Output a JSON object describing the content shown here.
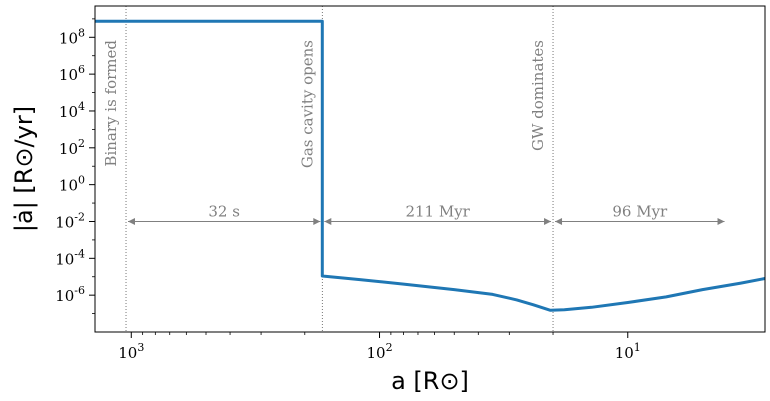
{
  "chart_data": {
    "type": "line",
    "xlabel": "a [R⊙]",
    "ylabel": "|ȧ| [R⊙/yr]",
    "x_scale": "log",
    "x_reversed": true,
    "y_scale": "log",
    "xlim": [
      1400,
      2.8
    ],
    "ylim": [
      1e-08,
      5000000000.0
    ],
    "x_ticks": [
      {
        "value": 1000,
        "base": "10",
        "exp": "3"
      },
      {
        "value": 100,
        "base": "10",
        "exp": "2"
      },
      {
        "value": 10,
        "base": "10",
        "exp": "1"
      }
    ],
    "y_ticks": [
      {
        "value": 100000000.0,
        "base": "10",
        "exp": "8"
      },
      {
        "value": 1000000.0,
        "base": "10",
        "exp": "6"
      },
      {
        "value": 10000.0,
        "base": "10",
        "exp": "4"
      },
      {
        "value": 100.0,
        "base": "10",
        "exp": "2"
      },
      {
        "value": 1,
        "base": "10",
        "exp": "0"
      },
      {
        "value": 0.01,
        "base": "10",
        "exp": "-2"
      },
      {
        "value": 0.0001,
        "base": "10",
        "exp": "-4"
      },
      {
        "value": 1e-06,
        "base": "10",
        "exp": "-6"
      }
    ],
    "series": [
      {
        "color": "#1f77b4",
        "x": [
          1400,
          170,
          170,
          120,
          80,
          50,
          35,
          28,
          24,
          20.5,
          18,
          14,
          10,
          7,
          5,
          3.5,
          2.8
        ],
        "y": [
          750000000.0,
          750000000.0,
          1.1e-05,
          7e-06,
          4e-06,
          2e-06,
          1.1e-06,
          5.5e-07,
          3e-07,
          1.5e-07,
          1.6e-07,
          2.2e-07,
          4e-07,
          8e-07,
          2e-06,
          4.5e-06,
          8e-06
        ]
      }
    ],
    "vlines": [
      {
        "x": 1050,
        "label": "Binary is formed"
      },
      {
        "x": 170,
        "label": "Gas cavity opens"
      },
      {
        "x": 20,
        "label": "GW dominates"
      }
    ],
    "intervals": [
      {
        "x_start": 1050,
        "x_end": 170,
        "label": "32 s"
      },
      {
        "x_start": 170,
        "x_end": 20,
        "label": "211 Myr"
      },
      {
        "x_start": 20,
        "x_end": 4,
        "label": "96 Myr"
      }
    ],
    "colors": {
      "line": "#1f77b4",
      "annotation": "#808080"
    }
  }
}
